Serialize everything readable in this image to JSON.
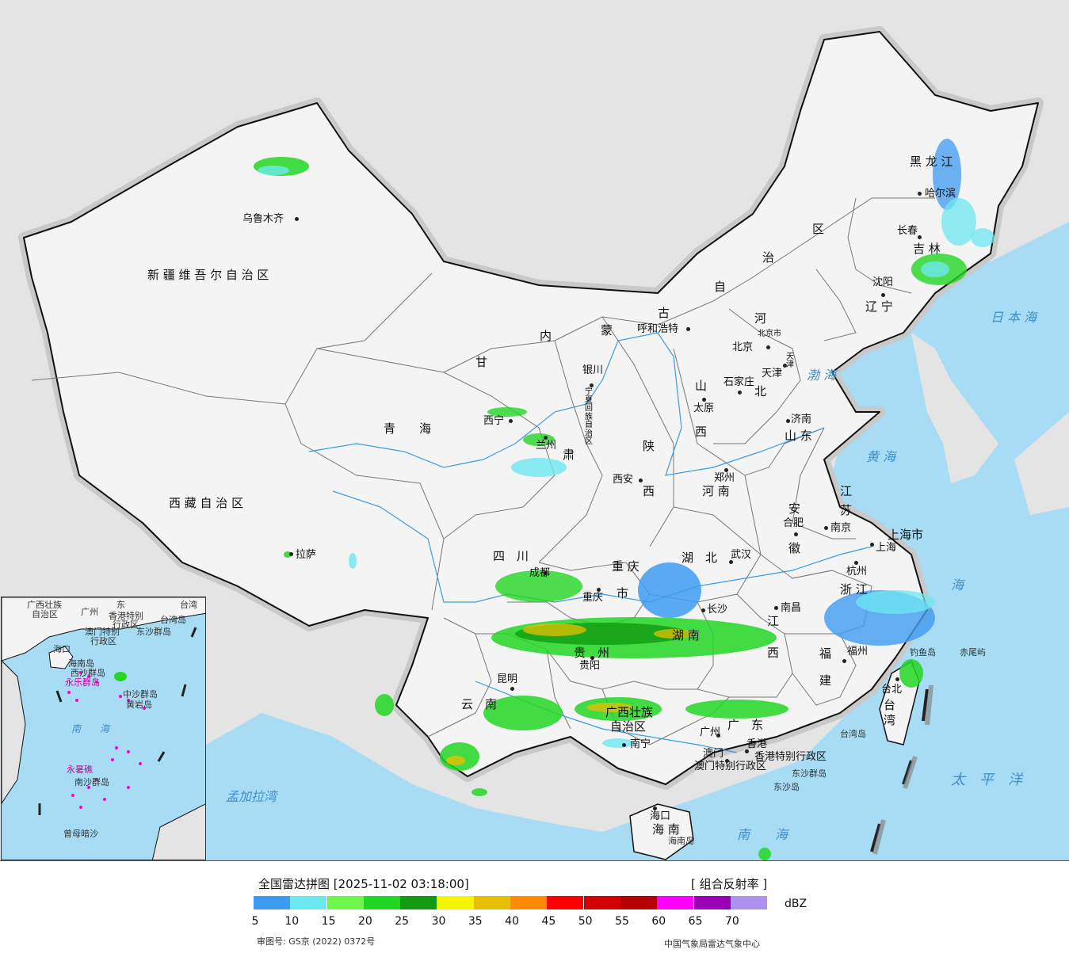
{
  "map": {
    "provinces": [
      {
        "id": "xinjiang",
        "label": "新 疆 维 吾 尔 自 治 区"
      },
      {
        "id": "xizang",
        "label": "西 藏 自 治 区"
      },
      {
        "id": "qinghai",
        "label": "青　　海"
      },
      {
        "id": "gansu",
        "label": "甘"
      },
      {
        "id": "gansu2",
        "label": "肃"
      },
      {
        "id": "neimeng1",
        "label": "内"
      },
      {
        "id": "neimeng2",
        "label": "蒙"
      },
      {
        "id": "neimeng3",
        "label": "古"
      },
      {
        "id": "neimeng4",
        "label": "自"
      },
      {
        "id": "neimeng5",
        "label": "治"
      },
      {
        "id": "neimeng6",
        "label": "区"
      },
      {
        "id": "heilongjiang",
        "label": "黑 龙 江"
      },
      {
        "id": "jilin",
        "label": "吉 林"
      },
      {
        "id": "liaoning",
        "label": "辽 宁"
      },
      {
        "id": "hebei1",
        "label": "河"
      },
      {
        "id": "hebei2",
        "label": "北"
      },
      {
        "id": "shanxi1",
        "label": "山"
      },
      {
        "id": "shanxi2",
        "label": "西"
      },
      {
        "id": "shaanxi1",
        "label": "陕"
      },
      {
        "id": "shaanxi2",
        "label": "西"
      },
      {
        "id": "shandong",
        "label": "山 东"
      },
      {
        "id": "henan",
        "label": "河 南"
      },
      {
        "id": "jiangsu1",
        "label": "江"
      },
      {
        "id": "jiangsu2",
        "label": "苏"
      },
      {
        "id": "anhui1",
        "label": "安"
      },
      {
        "id": "anhui2",
        "label": "徽"
      },
      {
        "id": "shanghai",
        "label": "上海市"
      },
      {
        "id": "zhejiang",
        "label": "浙 江"
      },
      {
        "id": "sichuan",
        "label": "四　川"
      },
      {
        "id": "chongqing1",
        "label": "重 庆"
      },
      {
        "id": "chongqing2",
        "label": "市"
      },
      {
        "id": "hubei",
        "label": "湖　北"
      },
      {
        "id": "hunan",
        "label": "湖 南"
      },
      {
        "id": "jiangxi1",
        "label": "江"
      },
      {
        "id": "jiangxi2",
        "label": "西"
      },
      {
        "id": "fujian1",
        "label": "福"
      },
      {
        "id": "fujian2",
        "label": "建"
      },
      {
        "id": "guizhou",
        "label": "贵　州"
      },
      {
        "id": "yunnan",
        "label": "云　南"
      },
      {
        "id": "guangxi1",
        "label": "广西壮族"
      },
      {
        "id": "guangxi2",
        "label": "自治区"
      },
      {
        "id": "guangdong",
        "label": "广　东"
      },
      {
        "id": "hainan",
        "label": "海 南"
      },
      {
        "id": "taiwan1",
        "label": "台"
      },
      {
        "id": "taiwan2",
        "label": "湾"
      },
      {
        "id": "ningxia",
        "label": "宁夏回族自治区"
      },
      {
        "id": "hongkong",
        "label": "香港特别行政区"
      },
      {
        "id": "macau",
        "label": "澳门特别行政区"
      }
    ],
    "cities": [
      {
        "id": "urumqi",
        "label": "乌鲁木齐"
      },
      {
        "id": "lhasa",
        "label": "拉萨"
      },
      {
        "id": "xining",
        "label": "西宁"
      },
      {
        "id": "lanzhou",
        "label": "兰州"
      },
      {
        "id": "yinchuan",
        "label": "银川"
      },
      {
        "id": "hohhot",
        "label": "呼和浩特"
      },
      {
        "id": "harbin",
        "label": "哈尔滨"
      },
      {
        "id": "changchun",
        "label": "长春"
      },
      {
        "id": "shenyang",
        "label": "沈阳"
      },
      {
        "id": "beijing",
        "label": "北京"
      },
      {
        "id": "beijingshi",
        "label": "北京市"
      },
      {
        "id": "tianjin",
        "label": "天津"
      },
      {
        "id": "tianjin2",
        "label": "天津"
      },
      {
        "id": "shijiazhuang",
        "label": "石家庄"
      },
      {
        "id": "taiyuan",
        "label": "太原"
      },
      {
        "id": "jinan",
        "label": "济南"
      },
      {
        "id": "zhengzhou",
        "label": "郑州"
      },
      {
        "id": "xian",
        "label": "西安"
      },
      {
        "id": "hefei",
        "label": "合肥"
      },
      {
        "id": "nanjing",
        "label": "南京"
      },
      {
        "id": "shanghaic",
        "label": "上海"
      },
      {
        "id": "hangzhou",
        "label": "杭州"
      },
      {
        "id": "wuhan",
        "label": "武汉"
      },
      {
        "id": "chengdu",
        "label": "成都"
      },
      {
        "id": "chongqingc",
        "label": "重庆"
      },
      {
        "id": "changsha",
        "label": "长沙"
      },
      {
        "id": "nanchang",
        "label": "南昌"
      },
      {
        "id": "fuzhou",
        "label": "福州"
      },
      {
        "id": "guiyang",
        "label": "贵阳"
      },
      {
        "id": "kunming",
        "label": "昆明"
      },
      {
        "id": "nanning",
        "label": "南宁"
      },
      {
        "id": "guangzhou",
        "label": "广州"
      },
      {
        "id": "aomen",
        "label": "澳门"
      },
      {
        "id": "xianggang",
        "label": "香港"
      },
      {
        "id": "haikou",
        "label": "海口"
      },
      {
        "id": "taibei",
        "label": "台北"
      }
    ],
    "seas": [
      {
        "id": "bohai",
        "label": "渤 海"
      },
      {
        "id": "huanghai",
        "label": "黄 海"
      },
      {
        "id": "donghai",
        "label": "海"
      },
      {
        "id": "nanhai",
        "label": "南　　海"
      },
      {
        "id": "riben",
        "label": "日 本 海"
      },
      {
        "id": "taipingyang",
        "label": "太　平　洋"
      },
      {
        "id": "mengjiala",
        "label": "孟加拉湾"
      }
    ],
    "islands": [
      {
        "id": "diaoyu",
        "label": "钓鱼岛"
      },
      {
        "id": "chiwei",
        "label": "赤尾屿"
      },
      {
        "id": "taiwandao",
        "label": "台湾岛"
      },
      {
        "id": "dongsha",
        "label": "东沙群岛"
      },
      {
        "id": "dongshadao",
        "label": "东沙岛"
      },
      {
        "id": "hainandao",
        "label": "海南岛"
      }
    ],
    "inset_labels": [
      {
        "id": "i1",
        "label": "广西壮族"
      },
      {
        "id": "i2",
        "label": "自治区"
      },
      {
        "id": "i3",
        "label": "广州"
      },
      {
        "id": "i4",
        "label": "东"
      },
      {
        "id": "i5",
        "label": "香港特别"
      },
      {
        "id": "i6",
        "label": "行政区"
      },
      {
        "id": "i7",
        "label": "澳门特别"
      },
      {
        "id": "i8",
        "label": "行政区"
      },
      {
        "id": "i9",
        "label": "台湾"
      },
      {
        "id": "i10",
        "label": "台湾岛"
      },
      {
        "id": "i11",
        "label": "东沙群岛"
      },
      {
        "id": "i12",
        "label": "海口"
      },
      {
        "id": "i13",
        "label": "海南岛"
      },
      {
        "id": "i14",
        "label": "西沙群岛"
      },
      {
        "id": "i15",
        "label": "永乐群岛"
      },
      {
        "id": "i16",
        "label": "中沙群岛"
      },
      {
        "id": "i17",
        "label": "黄岩岛"
      },
      {
        "id": "i18",
        "label": "南　　海"
      },
      {
        "id": "i19",
        "label": "南沙群岛"
      },
      {
        "id": "i20",
        "label": "永暑礁"
      },
      {
        "id": "i21",
        "label": "曾母暗沙"
      }
    ]
  },
  "legend": {
    "title": "全国雷达拼图 [2025-11-02 03:18:00]",
    "product": "[ 组合反射率 ]",
    "unit": "dBZ",
    "colors": [
      "#3e9bf2",
      "#6ee8f0",
      "#6cf74a",
      "#23d623",
      "#129a12",
      "#f5f500",
      "#e6c000",
      "#ff8c00",
      "#ff0000",
      "#d20000",
      "#b40000",
      "#ff00ff",
      "#9900b4",
      "#ad90f0"
    ],
    "ticks": [
      "5",
      "10",
      "15",
      "20",
      "25",
      "30",
      "35",
      "40",
      "45",
      "50",
      "55",
      "60",
      "65",
      "70"
    ],
    "footer_left": "审图号: GS京 (2022) 0372号",
    "footer_right": "中国气象局雷达气象中心"
  }
}
